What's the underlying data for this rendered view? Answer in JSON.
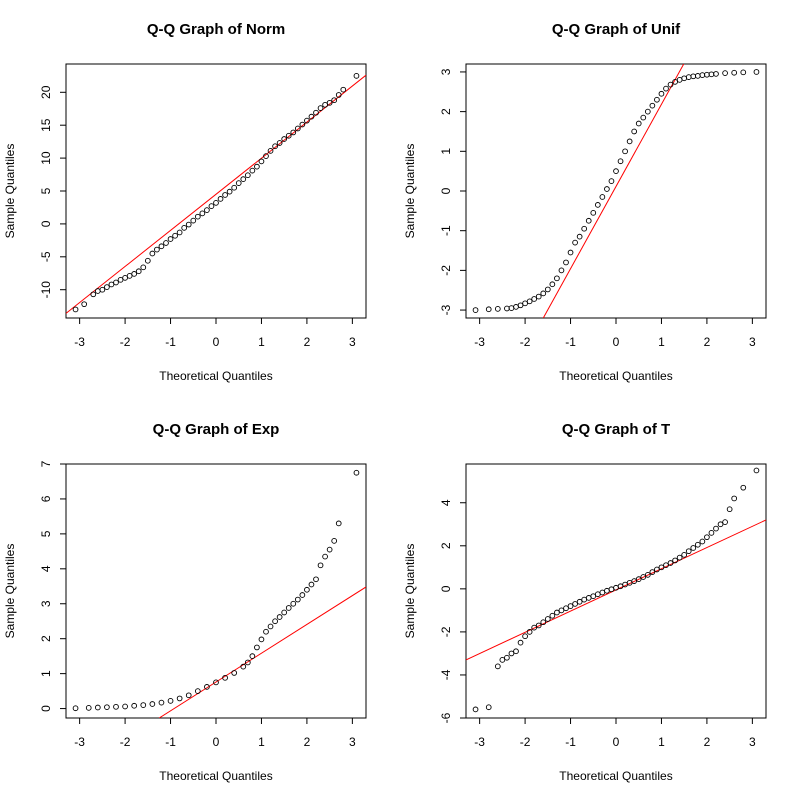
{
  "chart_data": [
    {
      "type": "scatter",
      "title": "Q-Q Graph of Norm",
      "xlabel": "Theoretical Quantiles",
      "ylabel": "Sample Quantiles",
      "xlim": [
        -3.3,
        3.3
      ],
      "ylim": [
        -14.3,
        24.3
      ],
      "xticks": [
        -3,
        -2,
        -1,
        0,
        1,
        2,
        3
      ],
      "yticks": [
        -10,
        -5,
        0,
        5,
        10,
        15,
        20
      ],
      "ref_line": {
        "color": "#ff0000",
        "x": [
          -3.3,
          3.3
        ],
        "y": [
          -13.6,
          22.6
        ]
      },
      "points": {
        "x": [
          -3.09,
          -2.9,
          -2.7,
          -2.6,
          -2.5,
          -2.4,
          -2.3,
          -2.2,
          -2.1,
          -2.0,
          -1.9,
          -1.8,
          -1.7,
          -1.6,
          -1.5,
          -1.4,
          -1.3,
          -1.2,
          -1.1,
          -1.0,
          -0.9,
          -0.8,
          -0.7,
          -0.6,
          -0.5,
          -0.4,
          -0.3,
          -0.2,
          -0.1,
          0.0,
          0.1,
          0.2,
          0.3,
          0.4,
          0.5,
          0.6,
          0.7,
          0.8,
          0.9,
          1.0,
          1.1,
          1.2,
          1.3,
          1.4,
          1.5,
          1.6,
          1.7,
          1.8,
          1.9,
          2.0,
          2.1,
          2.2,
          2.3,
          2.4,
          2.5,
          2.6,
          2.7,
          2.8,
          3.09
        ],
        "y": [
          -13.0,
          -12.2,
          -10.7,
          -10.2,
          -10.0,
          -9.6,
          -9.2,
          -8.9,
          -8.5,
          -8.2,
          -7.9,
          -7.6,
          -7.2,
          -6.6,
          -5.6,
          -4.5,
          -3.9,
          -3.4,
          -2.9,
          -2.3,
          -1.8,
          -1.3,
          -0.6,
          -0.1,
          0.5,
          1.1,
          1.6,
          2.1,
          2.7,
          3.2,
          3.8,
          4.4,
          4.9,
          5.5,
          6.2,
          6.8,
          7.4,
          8.1,
          8.7,
          9.5,
          10.3,
          11.1,
          11.8,
          12.3,
          12.9,
          13.4,
          13.9,
          14.5,
          15.1,
          15.7,
          16.3,
          16.9,
          17.6,
          18.1,
          18.4,
          18.8,
          19.6,
          20.4,
          22.5
        ]
      }
    },
    {
      "type": "scatter",
      "title": "Q-Q Graph of Unif",
      "xlabel": "Theoretical Quantiles",
      "ylabel": "Sample Quantiles",
      "xlim": [
        -3.3,
        3.3
      ],
      "ylim": [
        -3.2,
        3.2
      ],
      "xticks": [
        -3,
        -2,
        -1,
        0,
        1,
        2,
        3
      ],
      "yticks": [
        -3,
        -2,
        -1,
        0,
        1,
        2,
        3
      ],
      "ref_line": {
        "color": "#ff0000",
        "x": [
          -1.6,
          1.49
        ],
        "y": [
          -3.2,
          3.2
        ]
      },
      "points": {
        "x": [
          -3.09,
          -2.8,
          -2.6,
          -2.4,
          -2.3,
          -2.2,
          -2.1,
          -2.0,
          -1.9,
          -1.8,
          -1.7,
          -1.6,
          -1.5,
          -1.4,
          -1.3,
          -1.2,
          -1.1,
          -1.0,
          -0.9,
          -0.8,
          -0.7,
          -0.6,
          -0.5,
          -0.4,
          -0.3,
          -0.2,
          -0.1,
          0.0,
          0.1,
          0.2,
          0.3,
          0.4,
          0.5,
          0.6,
          0.7,
          0.8,
          0.9,
          1.0,
          1.1,
          1.2,
          1.3,
          1.4,
          1.5,
          1.6,
          1.7,
          1.8,
          1.9,
          2.0,
          2.1,
          2.2,
          2.4,
          2.6,
          2.8,
          3.09
        ],
        "y": [
          -3.0,
          -2.98,
          -2.97,
          -2.96,
          -2.95,
          -2.92,
          -2.88,
          -2.83,
          -2.78,
          -2.72,
          -2.66,
          -2.58,
          -2.48,
          -2.35,
          -2.2,
          -2.0,
          -1.8,
          -1.55,
          -1.3,
          -1.15,
          -0.95,
          -0.75,
          -0.55,
          -0.35,
          -0.15,
          0.05,
          0.25,
          0.5,
          0.75,
          1.0,
          1.25,
          1.5,
          1.7,
          1.85,
          2.0,
          2.15,
          2.3,
          2.45,
          2.58,
          2.68,
          2.75,
          2.8,
          2.84,
          2.87,
          2.89,
          2.9,
          2.92,
          2.93,
          2.94,
          2.95,
          2.97,
          2.98,
          2.99,
          3.0
        ]
      }
    },
    {
      "type": "scatter",
      "title": "Q-Q Graph of Exp",
      "xlabel": "Theoretical Quantiles",
      "ylabel": "Sample Quantiles",
      "xlim": [
        -3.3,
        3.3
      ],
      "ylim": [
        -0.27,
        7.0
      ],
      "xticks": [
        -3,
        -2,
        -1,
        0,
        1,
        2,
        3
      ],
      "yticks": [
        0,
        1,
        2,
        3,
        4,
        5,
        6,
        7
      ],
      "ref_line": {
        "color": "#ff0000",
        "x": [
          -1.25,
          3.3
        ],
        "y": [
          -0.27,
          3.48
        ]
      },
      "points": {
        "x": [
          -3.09,
          -2.8,
          -2.6,
          -2.4,
          -2.2,
          -2.0,
          -1.8,
          -1.6,
          -1.4,
          -1.2,
          -1.0,
          -0.8,
          -0.6,
          -0.4,
          -0.2,
          0.0,
          0.2,
          0.4,
          0.6,
          0.7,
          0.8,
          0.9,
          1.0,
          1.1,
          1.2,
          1.3,
          1.4,
          1.5,
          1.6,
          1.7,
          1.8,
          1.9,
          2.0,
          2.1,
          2.2,
          2.3,
          2.4,
          2.5,
          2.6,
          2.7,
          3.09
        ],
        "y": [
          0.01,
          0.02,
          0.03,
          0.04,
          0.05,
          0.06,
          0.08,
          0.1,
          0.13,
          0.17,
          0.22,
          0.29,
          0.38,
          0.5,
          0.62,
          0.75,
          0.88,
          1.02,
          1.2,
          1.32,
          1.5,
          1.75,
          1.98,
          2.2,
          2.35,
          2.5,
          2.62,
          2.75,
          2.88,
          3.0,
          3.12,
          3.25,
          3.4,
          3.55,
          3.7,
          4.1,
          4.35,
          4.55,
          4.8,
          5.3,
          6.75
        ]
      }
    },
    {
      "type": "scatter",
      "title": "Q-Q Graph of T",
      "xlabel": "Theoretical Quantiles",
      "ylabel": "Sample Quantiles",
      "xlim": [
        -3.3,
        3.3
      ],
      "ylim": [
        -6.0,
        5.8
      ],
      "xticks": [
        -3,
        -2,
        -1,
        0,
        1,
        2,
        3
      ],
      "yticks": [
        -6,
        -4,
        -2,
        0,
        2,
        4
      ],
      "ref_line": {
        "color": "#ff0000",
        "x": [
          -3.3,
          3.3
        ],
        "y": [
          -3.3,
          3.2
        ]
      },
      "points": {
        "x": [
          -3.09,
          -2.8,
          -2.6,
          -2.5,
          -2.4,
          -2.3,
          -2.2,
          -2.1,
          -2.0,
          -1.9,
          -1.8,
          -1.7,
          -1.6,
          -1.5,
          -1.4,
          -1.3,
          -1.2,
          -1.1,
          -1.0,
          -0.9,
          -0.8,
          -0.7,
          -0.6,
          -0.5,
          -0.4,
          -0.3,
          -0.2,
          -0.1,
          0.0,
          0.1,
          0.2,
          0.3,
          0.4,
          0.5,
          0.6,
          0.7,
          0.8,
          0.9,
          1.0,
          1.1,
          1.2,
          1.3,
          1.4,
          1.5,
          1.6,
          1.7,
          1.8,
          1.9,
          2.0,
          2.1,
          2.2,
          2.3,
          2.4,
          2.5,
          2.6,
          2.8,
          3.09
        ],
        "y": [
          -5.6,
          -5.5,
          -3.6,
          -3.3,
          -3.2,
          -3.0,
          -2.9,
          -2.5,
          -2.2,
          -2.0,
          -1.8,
          -1.7,
          -1.55,
          -1.4,
          -1.25,
          -1.1,
          -1.0,
          -0.9,
          -0.8,
          -0.7,
          -0.6,
          -0.5,
          -0.42,
          -0.34,
          -0.25,
          -0.17,
          -0.09,
          -0.02,
          0.05,
          0.12,
          0.2,
          0.28,
          0.36,
          0.45,
          0.55,
          0.65,
          0.78,
          0.9,
          1.0,
          1.1,
          1.2,
          1.32,
          1.45,
          1.58,
          1.75,
          1.9,
          2.05,
          2.2,
          2.4,
          2.6,
          2.8,
          3.0,
          3.1,
          3.7,
          4.2,
          4.7,
          5.5
        ]
      }
    }
  ]
}
